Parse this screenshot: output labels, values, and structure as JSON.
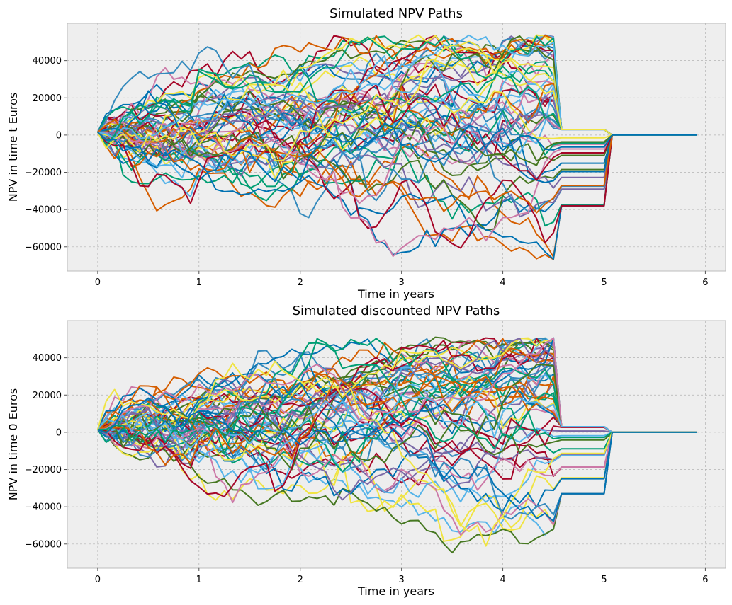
{
  "colors": {
    "axes_bg": "#eeeeee",
    "grid": "#b2b2b2",
    "palette": [
      "#348ABD",
      "#A60628",
      "#7A68A6",
      "#467821",
      "#D55E00",
      "#CC79A7",
      "#56B4E9",
      "#009E73",
      "#F0E442",
      "#0072B2"
    ]
  },
  "chart_data": [
    {
      "type": "line",
      "title": "Simulated NPV Paths",
      "xlabel": "Time in years",
      "ylabel": "NPV in time t Euros",
      "xlim": [
        -0.3,
        6.2
      ],
      "ylim": [
        -73000,
        60000
      ],
      "xticks": [
        "0",
        "1",
        "2",
        "3",
        "4",
        "5",
        "6"
      ],
      "yticks": [
        "−60000",
        "−40000",
        "−20000",
        "0",
        "20000",
        "40000"
      ],
      "grid": true,
      "t_step": 0.08333,
      "n_paths": 60,
      "terminal_range": [
        -38000,
        3000
      ],
      "outer_envelope": {
        "max": 53000,
        "min": -67000
      }
    },
    {
      "type": "line",
      "title": "Simulated discounted NPV Paths",
      "xlabel": "Time in years",
      "ylabel": "NPV in time 0 Euros",
      "xlim": [
        -0.3,
        6.2
      ],
      "ylim": [
        -73000,
        60000
      ],
      "xticks": [
        "0",
        "1",
        "2",
        "3",
        "4",
        "5",
        "6"
      ],
      "yticks": [
        "−60000",
        "−40000",
        "−20000",
        "0",
        "20000",
        "40000"
      ],
      "grid": true,
      "t_step": 0.08333,
      "n_paths": 60,
      "terminal_range": [
        -33000,
        3000
      ],
      "outer_envelope": {
        "max": 50000,
        "min": -65000
      }
    }
  ]
}
